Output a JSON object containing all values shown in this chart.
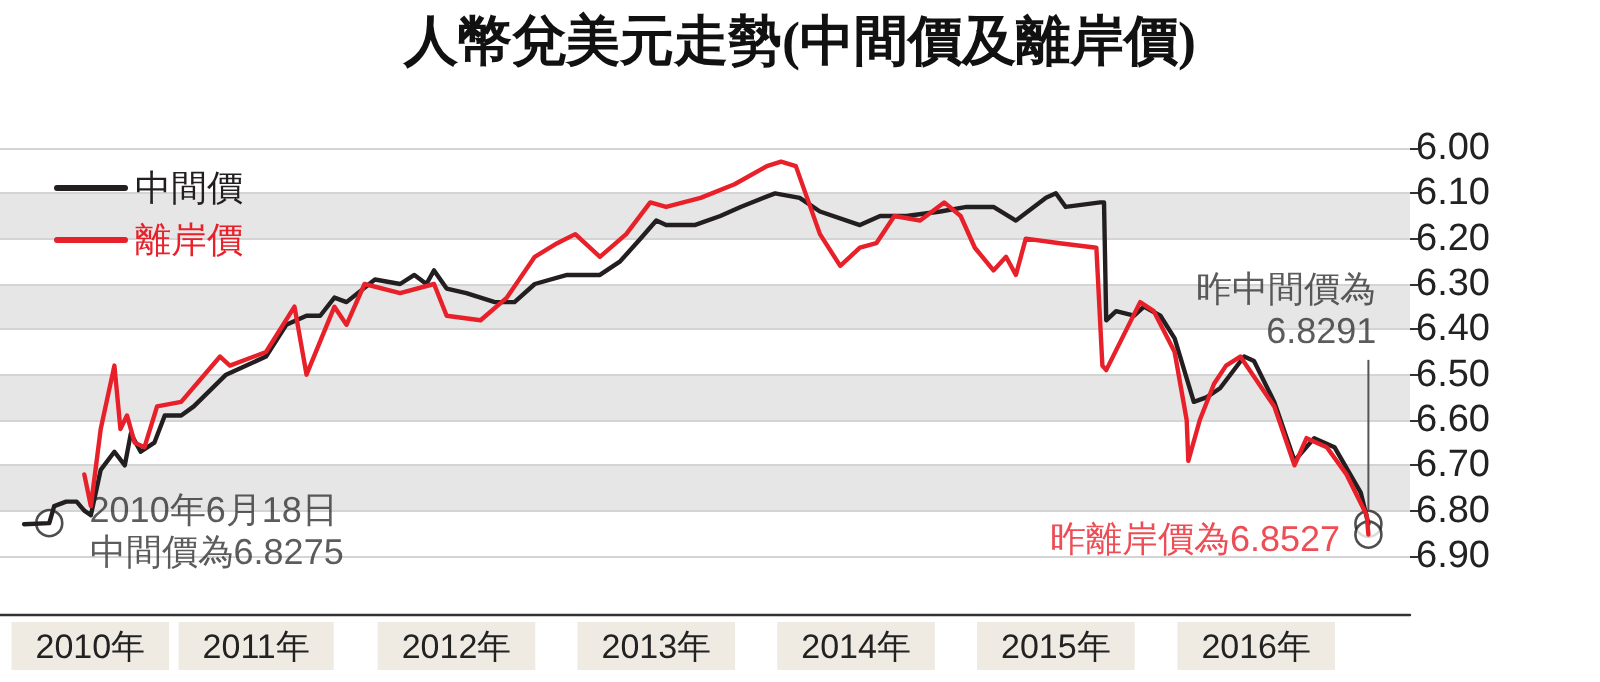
{
  "chart_data": {
    "type": "line",
    "title": "人幣兌美元走勢(中間價及離岸價)",
    "xlim": [
      "2010-03-20",
      "2017-04-08"
    ],
    "xticks": [
      {
        "value": "2010-09-01",
        "label": "2010年"
      },
      {
        "value": "2011-07-01",
        "label": "2011年"
      },
      {
        "value": "2012-07-01",
        "label": "2012年"
      },
      {
        "value": "2013-07-01",
        "label": "2013年"
      },
      {
        "value": "2014-07-01",
        "label": "2014年"
      },
      {
        "value": "2015-07-01",
        "label": "2015年"
      },
      {
        "value": "2016-07-01",
        "label": "2016年"
      }
    ],
    "ylim": [
      6.9,
      6.0
    ],
    "yticks": [
      {
        "value": 6.0,
        "label": "6.00"
      },
      {
        "value": 6.1,
        "label": "6.10"
      },
      {
        "value": 6.2,
        "label": "6.20"
      },
      {
        "value": 6.3,
        "label": "6.30"
      },
      {
        "value": 6.4,
        "label": "6.40"
      },
      {
        "value": 6.5,
        "label": "6.50"
      },
      {
        "value": 6.6,
        "label": "6.60"
      },
      {
        "value": 6.7,
        "label": "6.70"
      },
      {
        "value": 6.8,
        "label": "6.80"
      },
      {
        "value": 6.9,
        "label": "6.90"
      }
    ],
    "grid": "y",
    "legend": "top left",
    "marker": "none",
    "line_style": "solid",
    "series": [
      {
        "name": "中間價",
        "color": "#231f20",
        "x": [
          "2010-05-03",
          "2010-06-18",
          "2010-06-27",
          "2010-07-19",
          "2010-08-07",
          "2010-08-21",
          "2010-09-02",
          "2010-09-20",
          "2010-10-15",
          "2010-11-03",
          "2010-11-14",
          "2010-12-02",
          "2010-12-27",
          "2011-01-15",
          "2011-02-14",
          "2011-03-09",
          "2011-05-07",
          "2011-07-19",
          "2011-08-25",
          "2011-10-01",
          "2011-10-26",
          "2011-11-21",
          "2011-12-13",
          "2012-02-03",
          "2012-03-20",
          "2012-04-15",
          "2012-05-07",
          "2012-05-21",
          "2012-06-13",
          "2012-07-19",
          "2012-09-09",
          "2012-10-15",
          "2012-11-21",
          "2013-01-19",
          "2013-03-20",
          "2013-04-26",
          "2013-06-02",
          "2013-07-01",
          "2013-07-19",
          "2013-09-09",
          "2013-10-26",
          "2013-12-02",
          "2014-02-03",
          "2014-03-20",
          "2014-04-26",
          "2014-07-08",
          "2014-08-14",
          "2014-10-01",
          "2014-12-02",
          "2015-01-19",
          "2015-03-09",
          "2015-04-19",
          "2015-06-13",
          "2015-07-01",
          "2015-07-19",
          "2015-09-20",
          "2015-09-27",
          "2015-10-01",
          "2015-10-19",
          "2015-11-21",
          "2015-12-09",
          "2016-01-08",
          "2016-02-03",
          "2016-03-09",
          "2016-04-01",
          "2016-04-26",
          "2016-06-09",
          "2016-06-27",
          "2016-08-03",
          "2016-09-09",
          "2016-10-15",
          "2016-11-21",
          "2017-01-08",
          "2017-01-22"
        ],
        "values": [
          6.83,
          6.8275,
          6.79,
          6.78,
          6.78,
          6.8,
          6.81,
          6.71,
          6.67,
          6.7,
          6.63,
          6.67,
          6.65,
          6.59,
          6.59,
          6.57,
          6.5,
          6.46,
          6.39,
          6.37,
          6.37,
          6.33,
          6.34,
          6.29,
          6.3,
          6.28,
          6.3,
          6.27,
          6.31,
          6.32,
          6.34,
          6.34,
          6.3,
          6.28,
          6.28,
          6.25,
          6.2,
          6.16,
          6.17,
          6.17,
          6.15,
          6.13,
          6.1,
          6.11,
          6.14,
          6.17,
          6.15,
          6.15,
          6.14,
          6.13,
          6.13,
          6.16,
          6.11,
          6.1,
          6.13,
          6.12,
          6.12,
          6.38,
          6.36,
          6.37,
          6.35,
          6.37,
          6.42,
          6.56,
          6.55,
          6.53,
          6.46,
          6.47,
          6.56,
          6.69,
          6.64,
          6.66,
          6.76,
          6.8291
        ]
      },
      {
        "name": "離岸價",
        "color": "#e8202a",
        "x": [
          "2010-08-21",
          "2010-09-02",
          "2010-09-20",
          "2010-10-15",
          "2010-10-26",
          "2010-11-07",
          "2010-11-21",
          "2010-12-09",
          "2011-01-01",
          "2011-02-14",
          "2011-04-26",
          "2011-05-14",
          "2011-07-19",
          "2011-09-09",
          "2011-10-01",
          "2011-11-21",
          "2011-12-13",
          "2012-01-15",
          "2012-03-20",
          "2012-05-21",
          "2012-06-13",
          "2012-08-14",
          "2012-10-01",
          "2012-11-21",
          "2013-01-01",
          "2013-02-03",
          "2013-03-20",
          "2013-05-07",
          "2013-06-20",
          "2013-07-19",
          "2013-09-20",
          "2013-11-21",
          "2014-01-19",
          "2014-02-14",
          "2014-03-13",
          "2014-04-26",
          "2014-06-02",
          "2014-07-08",
          "2014-08-07",
          "2014-09-09",
          "2014-10-26",
          "2014-12-09",
          "2015-01-08",
          "2015-02-03",
          "2015-03-09",
          "2015-04-01",
          "2015-04-19",
          "2015-05-07",
          "2015-07-08",
          "2015-09-13",
          "2015-09-24",
          "2015-10-01",
          "2015-11-03",
          "2015-12-02",
          "2015-12-27",
          "2016-02-03",
          "2016-02-25",
          "2016-02-28",
          "2016-03-20",
          "2016-04-15",
          "2016-05-07",
          "2016-06-02",
          "2016-08-03",
          "2016-09-09",
          "2016-10-01",
          "2016-11-07",
          "2016-12-13",
          "2017-01-19",
          "2017-01-22"
        ],
        "values": [
          6.72,
          6.79,
          6.62,
          6.48,
          6.62,
          6.59,
          6.65,
          6.66,
          6.57,
          6.56,
          6.46,
          6.48,
          6.45,
          6.35,
          6.5,
          6.35,
          6.39,
          6.3,
          6.32,
          6.3,
          6.37,
          6.38,
          6.33,
          6.24,
          6.21,
          6.19,
          6.24,
          6.19,
          6.12,
          6.13,
          6.11,
          6.08,
          6.04,
          6.03,
          6.04,
          6.19,
          6.26,
          6.22,
          6.21,
          6.15,
          6.16,
          6.12,
          6.15,
          6.22,
          6.27,
          6.24,
          6.28,
          6.2,
          6.21,
          6.22,
          6.48,
          6.49,
          6.41,
          6.34,
          6.36,
          6.45,
          6.6,
          6.69,
          6.6,
          6.52,
          6.48,
          6.46,
          6.57,
          6.7,
          6.64,
          6.66,
          6.72,
          6.81,
          6.8527
        ]
      }
    ],
    "annotations": [
      {
        "text": "2010年6月18日中間價為6.8275",
        "x": "2010-06-18",
        "y": 6.8275
      },
      {
        "text": "昨中間價為6.8291",
        "x": "2017-01-22",
        "y": 6.8291
      },
      {
        "text": "昨離岸價為6.8527",
        "x": "2017-01-22",
        "y": 6.8527
      }
    ]
  }
}
